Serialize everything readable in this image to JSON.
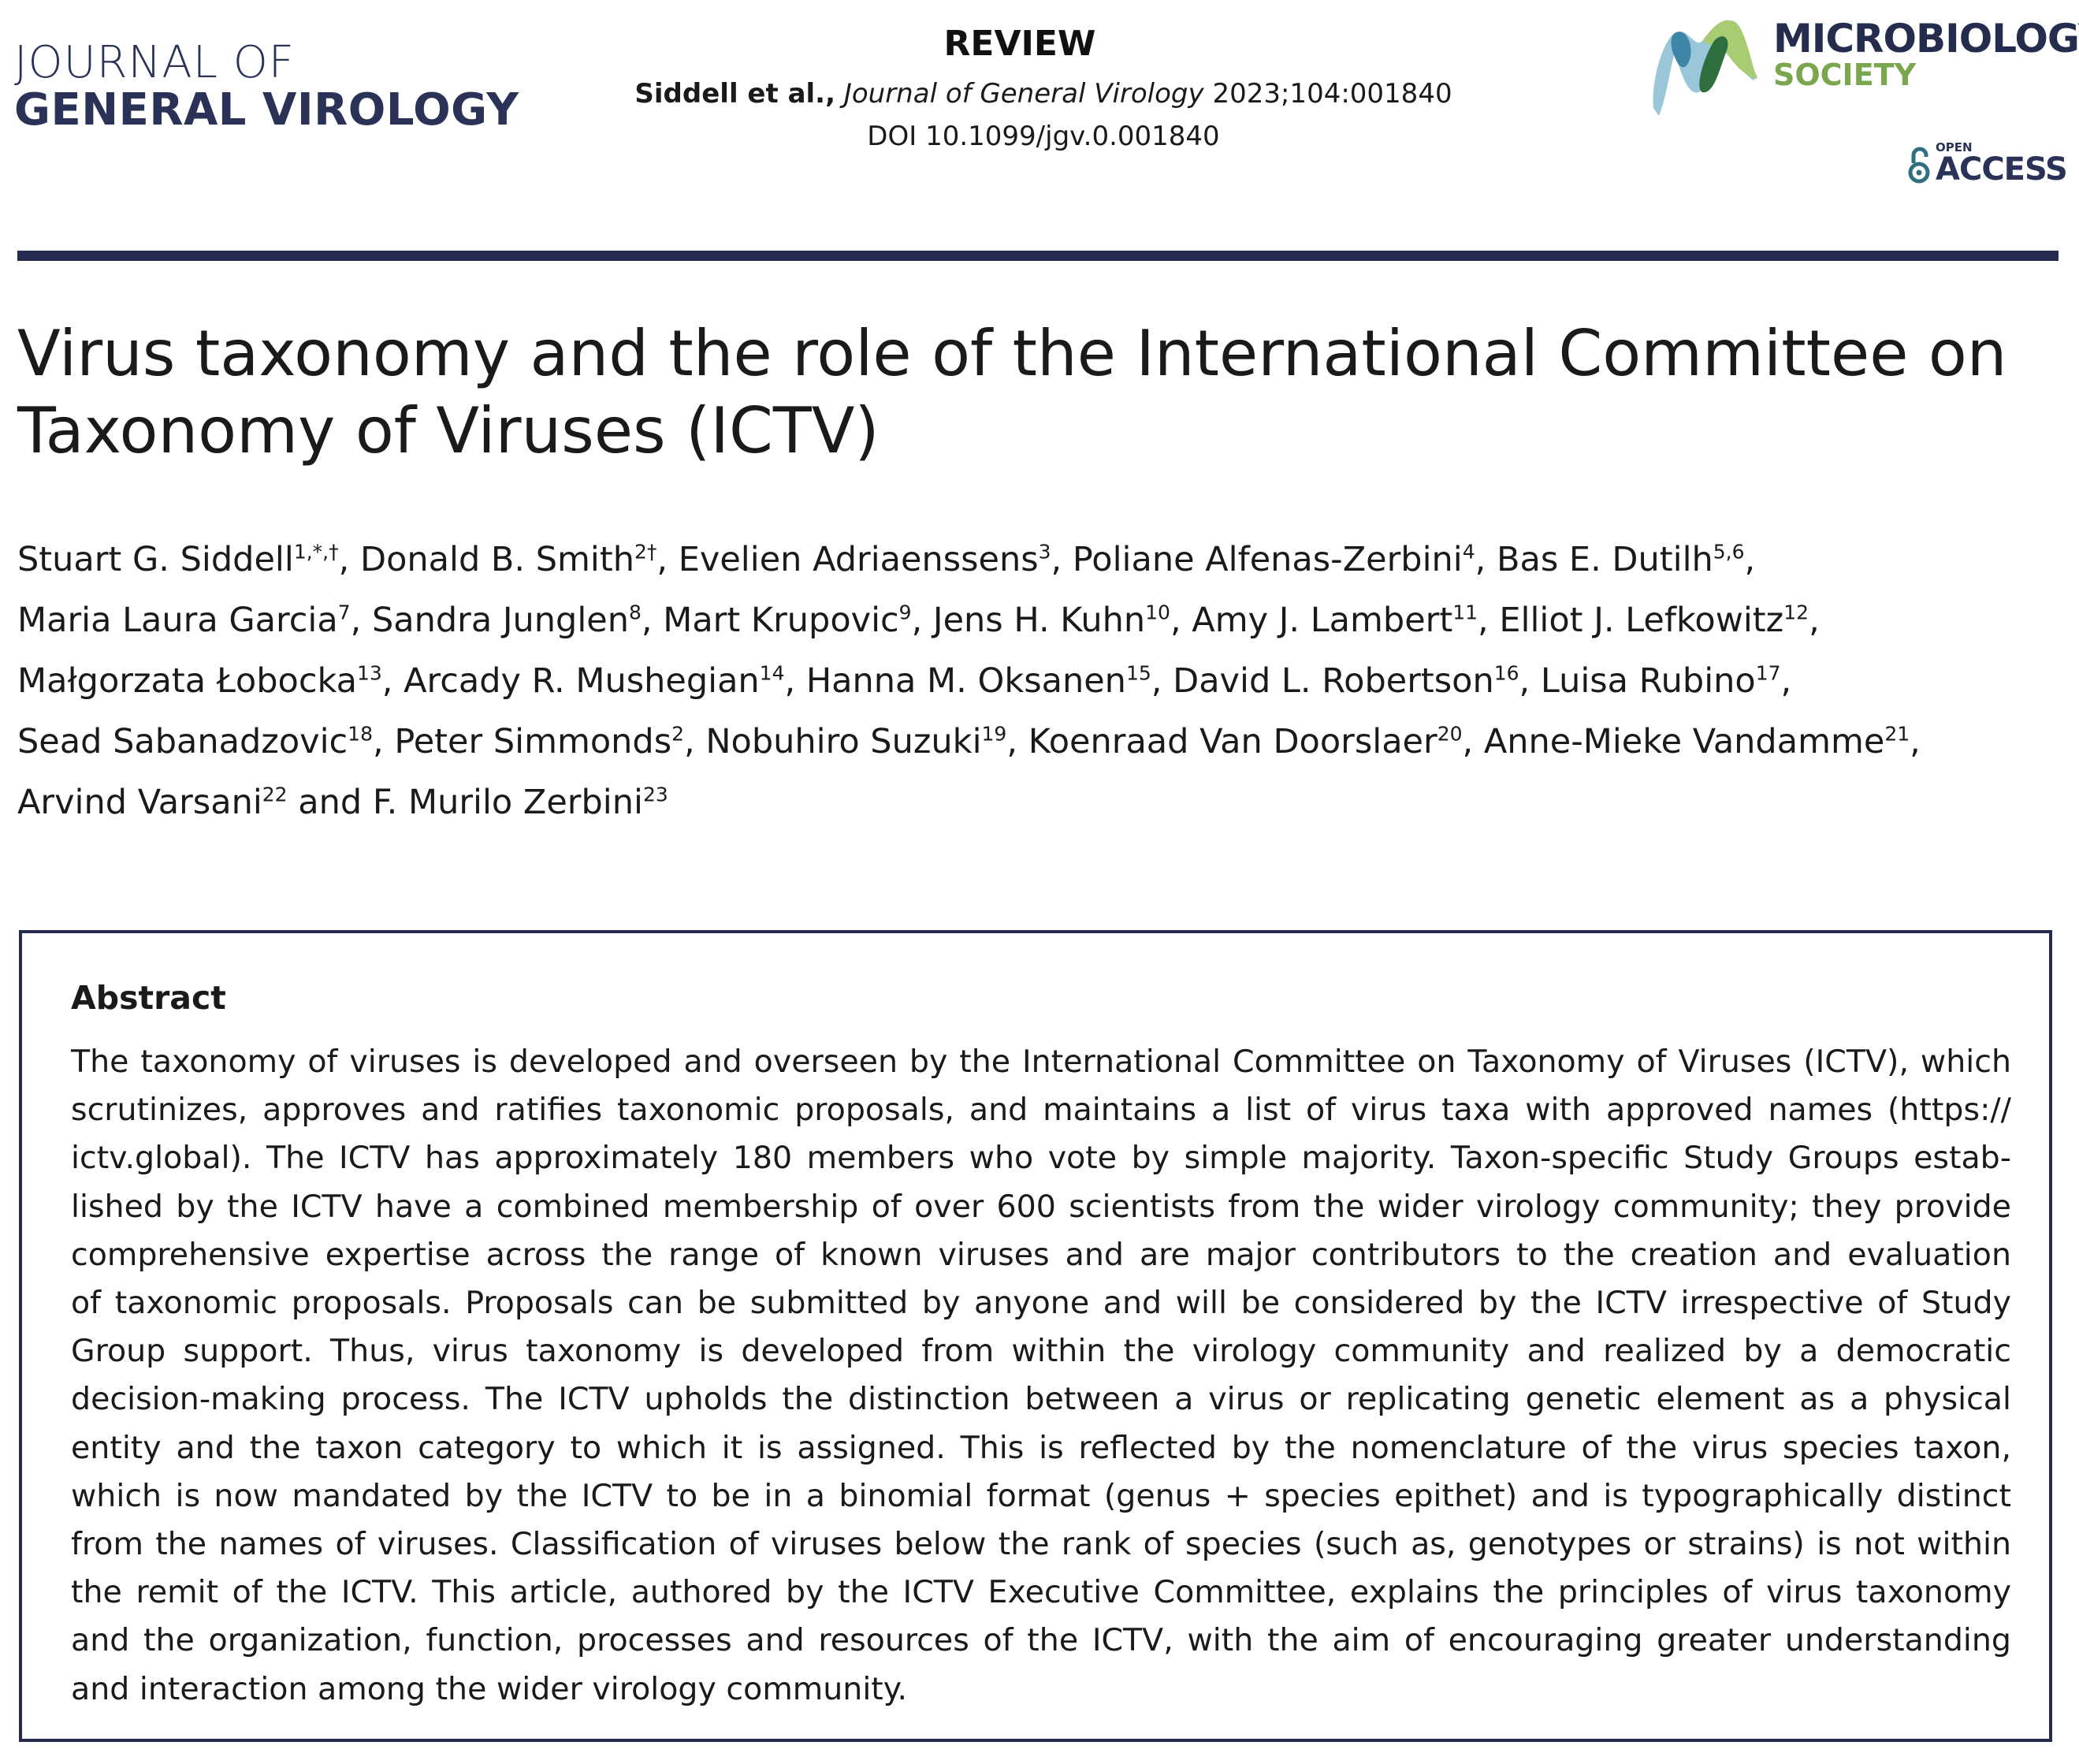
{
  "header": {
    "journal_line1": "JOURNAL OF",
    "journal_line2": "GENERAL VIROLOGY",
    "article_type": "REVIEW",
    "citation_authors": "Siddell et al.,",
    "citation_journal": "Journal of General Virology",
    "citation_rest": "2023;104:001840",
    "doi": "DOI 10.1099/jgv.0.001840",
    "publisher_line1": "MICROBIOLOGY",
    "publisher_line2": "SOCIETY",
    "open_access_small": "OPEN",
    "open_access_large": "ACCESS",
    "colors": {
      "navy": "#252c4f",
      "green": "#7aa64e",
      "teal": "#2e6f80"
    }
  },
  "title": "Virus taxonomy and the role of the International Committee on Taxonomy of Viruses (ICTV)",
  "authors": [
    {
      "name": "Stuart G. Siddell",
      "sup": "1,*,†",
      "sep": ", "
    },
    {
      "name": "Donald B. Smith",
      "sup": "2†",
      "sep": ", "
    },
    {
      "name": "Evelien Adriaenssens",
      "sup": "3",
      "sep": ", "
    },
    {
      "name": "Poliane Alfenas-Zerbini",
      "sup": "4",
      "sep": ", "
    },
    {
      "name": "Bas E. Dutilh",
      "sup": "5,6",
      "sep": ", "
    },
    {
      "name": "Maria Laura Garcia",
      "sup": "7",
      "sep": ", "
    },
    {
      "name": "Sandra Junglen",
      "sup": "8",
      "sep": ", "
    },
    {
      "name": "Mart Krupovic",
      "sup": "9",
      "sep": ", "
    },
    {
      "name": "Jens H. Kuhn",
      "sup": "10",
      "sep": ", "
    },
    {
      "name": "Amy J. Lambert",
      "sup": "11",
      "sep": ", "
    },
    {
      "name": "Elliot J. Lefkowitz",
      "sup": "12",
      "sep": ", "
    },
    {
      "name": "Małgorzata Łobocka",
      "sup": "13",
      "sep": ", "
    },
    {
      "name": "Arcady R. Mushegian",
      "sup": "14",
      "sep": ", "
    },
    {
      "name": "Hanna M. Oksanen",
      "sup": "15",
      "sep": ", "
    },
    {
      "name": "David L. Robertson",
      "sup": "16",
      "sep": ", "
    },
    {
      "name": "Luisa Rubino",
      "sup": "17",
      "sep": ", "
    },
    {
      "name": "Sead Sabanadzovic",
      "sup": "18",
      "sep": ", "
    },
    {
      "name": "Peter Simmonds",
      "sup": "2",
      "sep": ", "
    },
    {
      "name": "Nobuhiro Suzuki",
      "sup": "19",
      "sep": ", "
    },
    {
      "name": "Koenraad Van Doorslaer",
      "sup": "20",
      "sep": ", "
    },
    {
      "name": "Anne-Mieke Vandamme",
      "sup": "21",
      "sep": ", "
    },
    {
      "name": "Arvind Varsani",
      "sup": "22",
      "sep": " and "
    },
    {
      "name": "F. Murilo Zerbini",
      "sup": "23",
      "sep": ""
    }
  ],
  "abstract": {
    "heading": "Abstract",
    "lines": [
      "The taxonomy of viruses is developed and overseen by the International Committee on Taxonomy of Viruses (ICTV), which",
      "scrutinizes, approves and ratifies taxonomic proposals, and maintains a list of virus taxa with approved names (https://",
      "ictv.global). The ICTV has approximately 180 members who vote by simple majority. Taxon-specific Study Groups estab-",
      "lished by the ICTV have a combined membership of over 600 scientists from the wider virology community; they provide",
      "comprehensive expertise across the range of known viruses and are major contributors to the creation and evaluation",
      "of taxonomic proposals. Proposals can be submitted by anyone and will be considered by the ICTV irrespective of Study",
      "Group support. Thus, virus taxonomy is developed from within the virology community and realized by a democratic",
      "decision-making process. The ICTV upholds the distinction between a virus or replicating genetic element as a physical",
      "entity and the taxon category to which it is assigned. This is reflected by the nomenclature of the virus species taxon,",
      "which is now mandated by the ICTV to be in a binomial format (genus + species epithet) and is typographically distinct",
      "from the names of viruses. Classification of viruses below the rank of species (such as, genotypes or strains) is not within",
      "the remit of the ICTV. This article, authored by the ICTV Executive Committee, explains the principles of virus taxonomy",
      "and the organization, function, processes and resources of the ICTV, with the aim of encouraging greater understanding",
      "and interaction among the wider virology community."
    ]
  }
}
